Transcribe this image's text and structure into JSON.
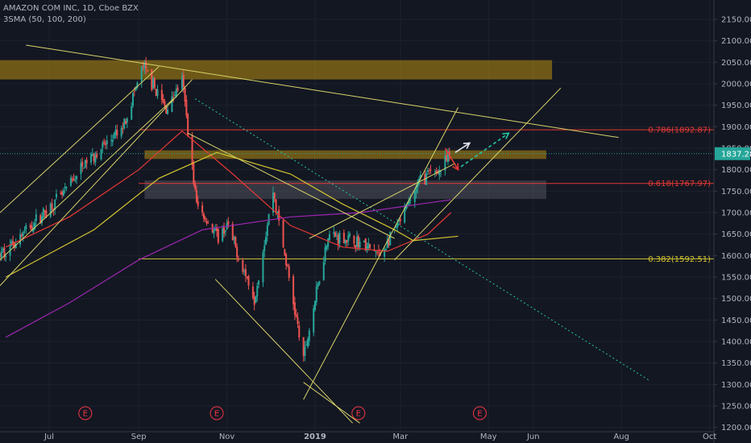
{
  "header": {
    "title": "AMAZON COM INC, 1D, Cboe BZX",
    "indicator": "3SMA (50, 100, 200)"
  },
  "colors": {
    "background": "#131722",
    "axis_text": "#b2b5be",
    "grid": "#1e222d",
    "up": "#26a69a",
    "down": "#ef5350",
    "sma50": "#e53935",
    "sma100": "#d4c430",
    "sma200": "#9c27b0",
    "trendline": "#d8d36a",
    "zone": "#b88e10",
    "zone_gray": "#5d606b",
    "fib_red": "#e53935",
    "fib_yellow": "#d4c430",
    "projection_green": "#26c6a6",
    "projection_white": "#e0e3eb",
    "projection_red": "#e53935",
    "price_badge": "#26a69a",
    "earnings_marker": "#f23645"
  },
  "chart_data": {
    "type": "candlestick",
    "y_axis": {
      "ticks": [
        1200,
        1250,
        1300,
        1350,
        1400,
        1450,
        1500,
        1550,
        1600,
        1650,
        1700,
        1750,
        1800,
        1850,
        1900,
        1950,
        2000,
        2050,
        2100,
        2150
      ],
      "ylim": [
        1190,
        2195
      ]
    },
    "x_axis": {
      "ticks": [
        "Jul",
        "Sep",
        "Nov",
        "2019",
        "Mar",
        "May",
        "Jun",
        "Aug",
        "Oct"
      ],
      "tick_dates": [
        "2018-07-01",
        "2018-09-01",
        "2018-11-01",
        "2019-01-01",
        "2019-03-01",
        "2019-05-01",
        "2019-06-01",
        "2019-08-01",
        "2019-10-01"
      ],
      "range": [
        "2018-05-28",
        "2019-10-04"
      ]
    },
    "last_price": "1837.28",
    "key_points": [
      {
        "date": "2018-05-28",
        "close": 1600
      },
      {
        "date": "2018-07-10",
        "close": 1740
      },
      {
        "date": "2018-07-27",
        "close": 1820
      },
      {
        "date": "2018-08-20",
        "close": 1890
      },
      {
        "date": "2018-09-04",
        "close": 2040
      },
      {
        "date": "2018-09-20",
        "close": 1940
      },
      {
        "date": "2018-10-01",
        "close": 2010
      },
      {
        "date": "2018-10-11",
        "close": 1720
      },
      {
        "date": "2018-10-26",
        "close": 1640
      },
      {
        "date": "2018-11-01",
        "close": 1670
      },
      {
        "date": "2018-11-20",
        "close": 1500
      },
      {
        "date": "2018-12-03",
        "close": 1750
      },
      {
        "date": "2018-12-24",
        "close": 1360
      },
      {
        "date": "2019-01-10",
        "close": 1650
      },
      {
        "date": "2019-02-01",
        "close": 1630
      },
      {
        "date": "2019-02-15",
        "close": 1600
      },
      {
        "date": "2019-03-01",
        "close": 1680
      },
      {
        "date": "2019-03-15",
        "close": 1780
      },
      {
        "date": "2019-03-29",
        "close": 1800
      },
      {
        "date": "2019-04-05",
        "close": 1837
      }
    ],
    "moving_averages": [
      {
        "name": "SMA 50",
        "points": [
          [
            "2018-06-01",
            1620
          ],
          [
            "2018-07-15",
            1690
          ],
          [
            "2018-09-01",
            1800
          ],
          [
            "2018-10-01",
            1890
          ],
          [
            "2018-11-05",
            1790
          ],
          [
            "2018-12-15",
            1670
          ],
          [
            "2019-01-20",
            1620
          ],
          [
            "2019-02-20",
            1610
          ],
          [
            "2019-03-20",
            1650
          ],
          [
            "2019-04-05",
            1700
          ]
        ]
      },
      {
        "name": "SMA 100",
        "points": [
          [
            "2018-06-01",
            1550
          ],
          [
            "2018-08-01",
            1660
          ],
          [
            "2018-09-15",
            1780
          ],
          [
            "2018-10-25",
            1840
          ],
          [
            "2018-12-15",
            1790
          ],
          [
            "2019-01-20",
            1720
          ],
          [
            "2019-02-25",
            1660
          ],
          [
            "2019-03-10",
            1635
          ],
          [
            "2019-04-10",
            1645
          ]
        ]
      },
      {
        "name": "SMA 200",
        "points": [
          [
            "2018-06-01",
            1410
          ],
          [
            "2018-07-15",
            1490
          ],
          [
            "2018-09-01",
            1590
          ],
          [
            "2018-10-15",
            1660
          ],
          [
            "2018-12-15",
            1690
          ],
          [
            "2019-02-01",
            1700
          ],
          [
            "2019-03-15",
            1720
          ],
          [
            "2019-04-05",
            1730
          ]
        ]
      }
    ],
    "fib_levels": [
      {
        "label": "0.786(1892.87)",
        "value": 1892.87,
        "color": "red",
        "from": "2018-09-01"
      },
      {
        "label": "0.618(1767.97)",
        "value": 1767.97,
        "color": "red",
        "from": "2018-09-01"
      },
      {
        "label": "0.382(1592.51)",
        "value": 1592.51,
        "color": "yellow",
        "from": "2018-09-01"
      }
    ],
    "zones": [
      {
        "from": "2018-05-28",
        "to": "2019-06-14",
        "low": 2010,
        "high": 2055,
        "color": "zone"
      },
      {
        "from": "2018-09-05",
        "to": "2019-06-10",
        "low": 1825,
        "high": 1845,
        "color": "zone"
      },
      {
        "from": "2018-09-05",
        "to": "2019-06-10",
        "low": 1732,
        "high": 1775,
        "color": "zone_gray"
      }
    ],
    "trendlines": [
      {
        "from": [
          "2018-06-15",
          2090
        ],
        "to": [
          "2019-07-30",
          1875
        ],
        "style": "solid",
        "color": "trendline"
      },
      {
        "from": [
          "2018-10-10",
          1965
        ],
        "to": [
          "2019-08-20",
          1310
        ],
        "style": "dotted",
        "color": "projection_green"
      },
      {
        "from": [
          "2018-05-28",
          1700
        ],
        "to": [
          "2018-09-15",
          2040
        ],
        "style": "solid",
        "color": "trendline"
      },
      {
        "from": [
          "2018-05-28",
          1590
        ],
        "to": [
          "2018-09-25",
          1965
        ],
        "style": "solid",
        "color": "trendline"
      },
      {
        "from": [
          "2018-05-28",
          1530
        ],
        "to": [
          "2018-10-08",
          2010
        ],
        "style": "solid",
        "color": "trendline"
      },
      {
        "from": [
          "2018-10-24",
          1545
        ],
        "to": [
          "2019-01-27",
          1210
        ],
        "style": "solid",
        "color": "trendline"
      },
      {
        "from": [
          "2018-12-24",
          1305
        ],
        "to": [
          "2019-02-01",
          1210
        ],
        "style": "solid",
        "color": "trendline"
      },
      {
        "from": [
          "2018-12-24",
          1265
        ],
        "to": [
          "2019-04-10",
          1945
        ],
        "style": "solid",
        "color": "trendline"
      },
      {
        "from": [
          "2018-12-28",
          1640
        ],
        "to": [
          "2019-04-08",
          1815
        ],
        "style": "solid",
        "color": "trendline"
      },
      {
        "from": [
          "2019-02-25",
          1590
        ],
        "to": [
          "2019-06-20",
          1990
        ],
        "style": "solid",
        "color": "trendline"
      },
      {
        "from": [
          "2018-10-05",
          1885
        ],
        "to": [
          "2019-02-25",
          1640
        ],
        "style": "solid",
        "color": "trendline"
      }
    ],
    "projections": [
      {
        "from": [
          "2019-04-08",
          1840
        ],
        "to": [
          "2019-04-18",
          1862
        ],
        "color": "projection_white",
        "style": "solid"
      },
      {
        "from": [
          "2019-04-01",
          1850
        ],
        "to": [
          "2019-04-10",
          1800
        ],
        "color": "projection_red",
        "style": "solid"
      },
      {
        "from": [
          "2019-04-12",
          1807
        ],
        "to": [
          "2019-05-15",
          1885
        ],
        "color": "projection_green",
        "style": "dashed"
      }
    ],
    "earnings_markers": [
      "2018-07-26",
      "2018-10-25",
      "2019-01-31",
      "2019-04-25"
    ],
    "earnings_label": "E",
    "sma_labels": [
      "SMA 50",
      "SMA 100",
      "SMA 200"
    ]
  }
}
